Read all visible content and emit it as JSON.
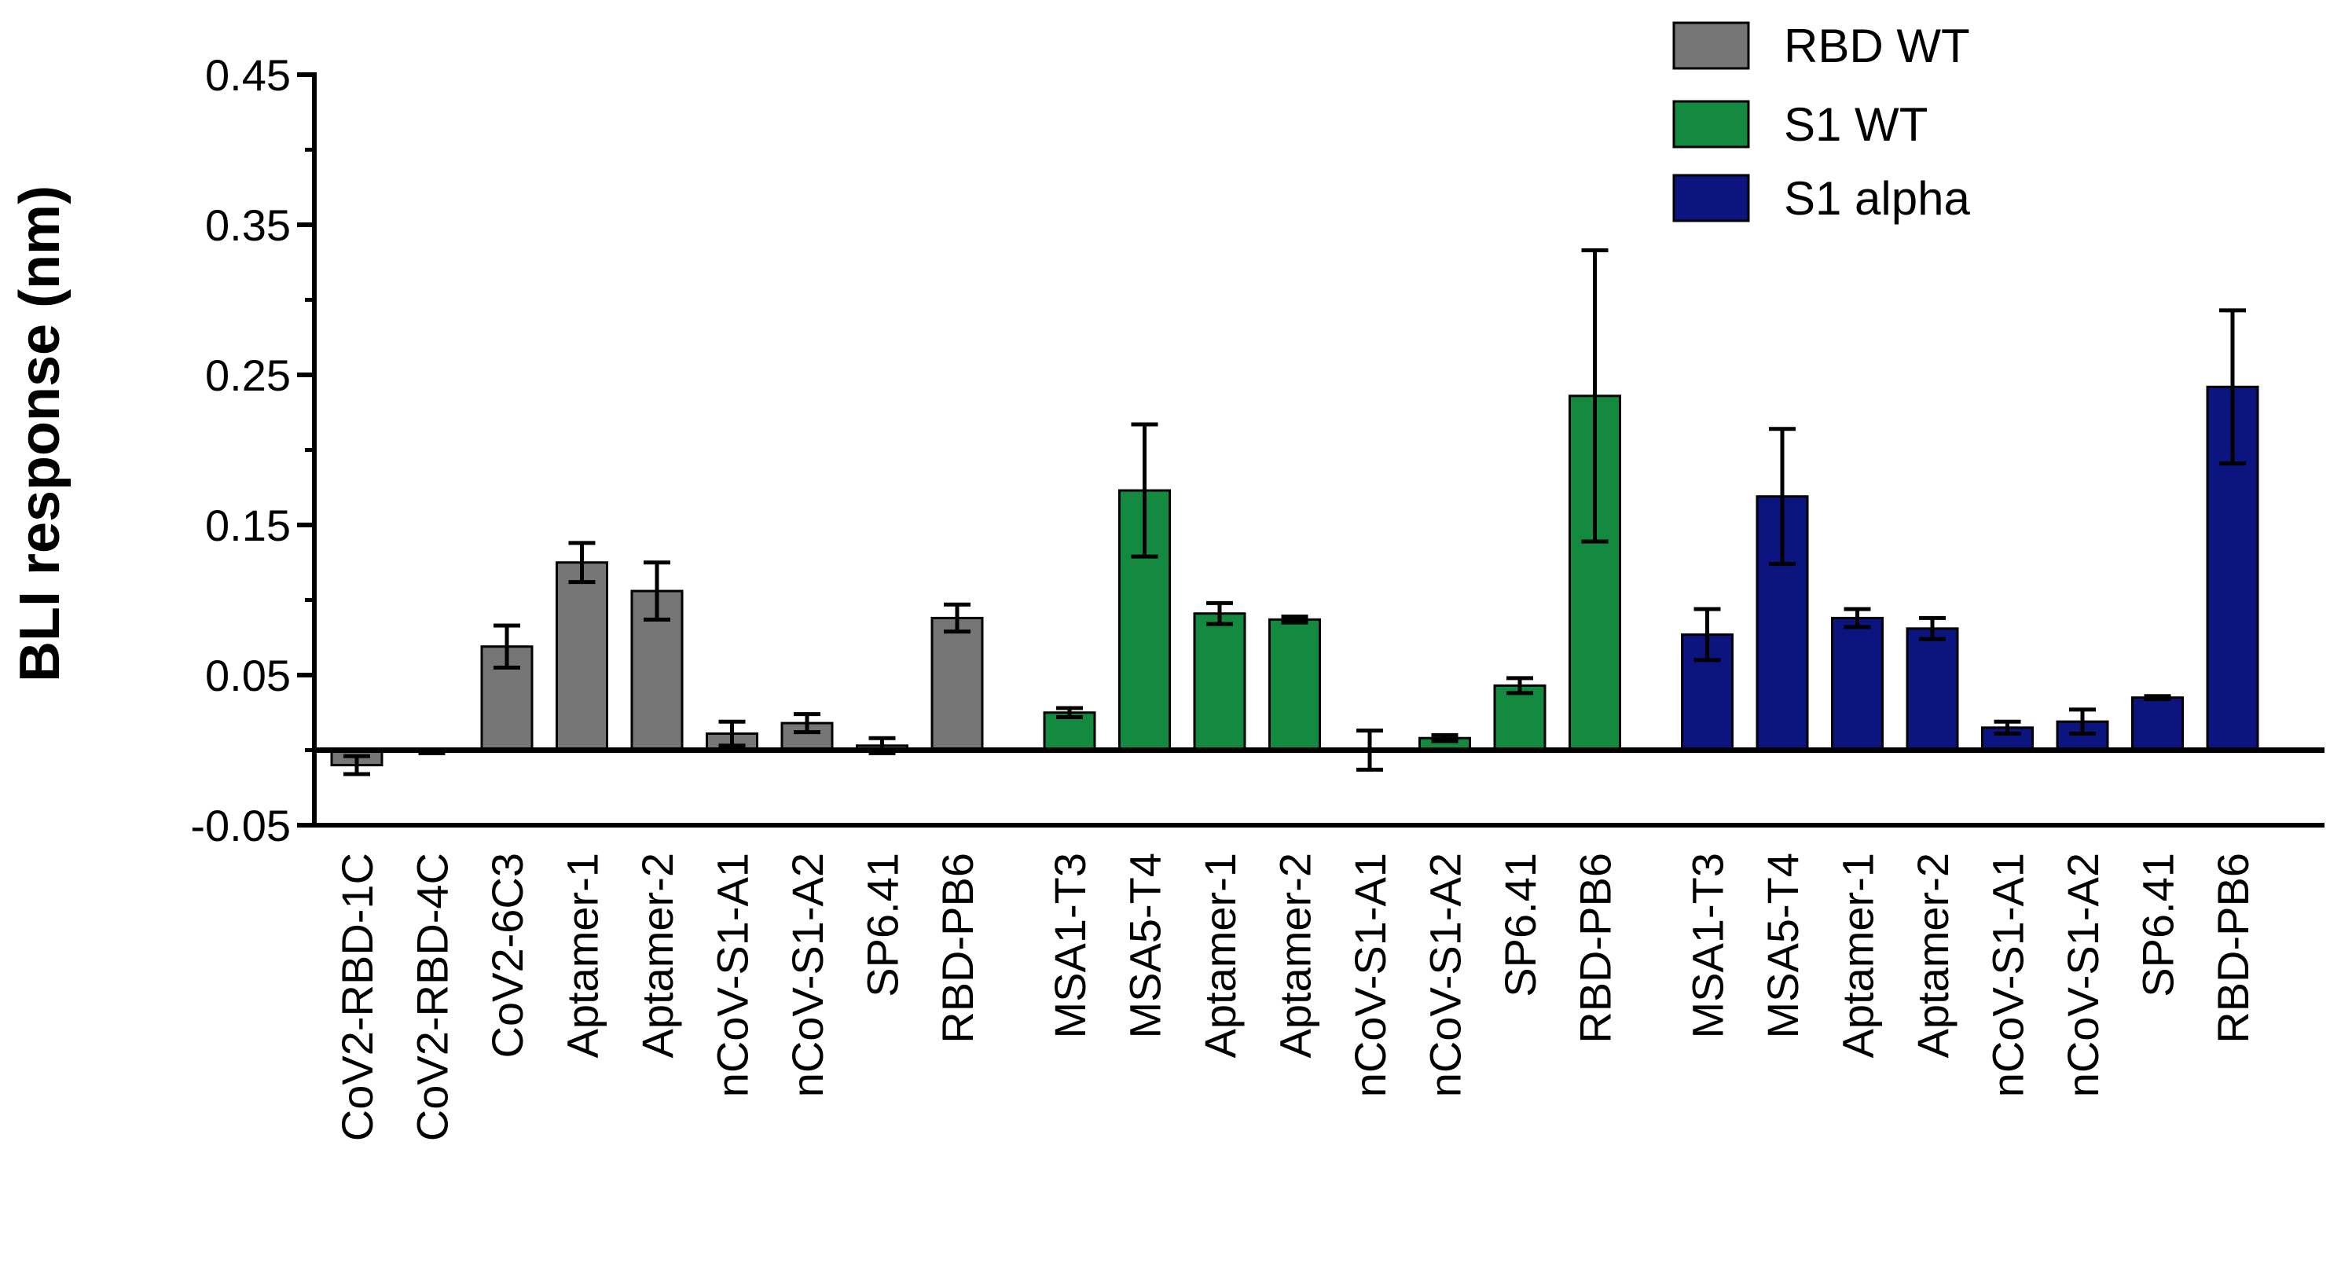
{
  "chart_data": {
    "type": "bar",
    "title": "",
    "xlabel": "",
    "ylabel": "BLI response (nm)",
    "ylim": [
      -0.05,
      0.45
    ],
    "yticks": [
      "0.45",
      "0.35",
      "0.25",
      "0.15",
      "0.05",
      "-0.05"
    ],
    "ytick_values": [
      0.45,
      0.35,
      0.25,
      0.15,
      0.05,
      -0.05
    ],
    "legend_position": "top-right",
    "series": [
      {
        "name": "RBD WT",
        "color": "#767676",
        "categories": [
          "CoV2-RBD-1C",
          "CoV2-RBD-4C",
          "CoV2-6C3",
          "Aptamer-1",
          "Aptamer-2",
          "nCoV-S1-A1",
          "nCoV-S1-A2",
          "SP6.41",
          "RBD-PB6"
        ],
        "values": [
          -0.01,
          -0.001,
          0.069,
          0.125,
          0.106,
          0.011,
          0.018,
          0.003,
          0.088
        ],
        "errors": [
          0.006,
          0.001,
          0.014,
          0.013,
          0.019,
          0.008,
          0.006,
          0.005,
          0.009
        ]
      },
      {
        "name": "S1 WT",
        "color": "#138a40",
        "categories": [
          "MSA1-T3",
          "MSA5-T4",
          "Aptamer-1",
          "Aptamer-2",
          "nCoV-S1-A1",
          "nCoV-S1-A2",
          "SP6.41",
          "RBD-PB6"
        ],
        "values": [
          0.025,
          0.173,
          0.091,
          0.087,
          0.0,
          0.008,
          0.043,
          0.236
        ],
        "errors": [
          0.003,
          0.044,
          0.007,
          0.002,
          0.013,
          0.002,
          0.005,
          0.097
        ]
      },
      {
        "name": "S1 alpha",
        "color": "#0c1480",
        "categories": [
          "MSA1-T3",
          "MSA5-T4",
          "Aptamer-1",
          "Aptamer-2",
          "nCoV-S1-A1",
          "nCoV-S1-A2",
          "SP6.41",
          "RBD-PB6"
        ],
        "values": [
          0.077,
          0.169,
          0.088,
          0.081,
          0.015,
          0.019,
          0.035,
          0.242
        ],
        "errors": [
          0.017,
          0.045,
          0.006,
          0.007,
          0.004,
          0.008,
          0.001,
          0.051
        ]
      }
    ]
  }
}
